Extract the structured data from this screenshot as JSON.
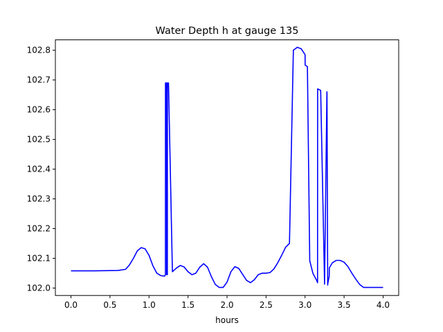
{
  "chart_data": {
    "type": "line",
    "title": "Water Depth h at gauge 135",
    "xlabel": "hours",
    "ylabel": "",
    "xlim": [
      -0.2,
      4.2
    ],
    "ylim": [
      101.975,
      102.835
    ],
    "x_ticks": [
      0.0,
      0.5,
      1.0,
      1.5,
      2.0,
      2.5,
      3.0,
      3.5,
      4.0
    ],
    "x_tick_labels": [
      "0.0",
      "0.5",
      "1.0",
      "1.5",
      "2.0",
      "2.5",
      "3.0",
      "3.5",
      "4.0"
    ],
    "y_ticks": [
      102.0,
      102.1,
      102.2,
      102.3,
      102.4,
      102.5,
      102.6,
      102.7,
      102.8
    ],
    "y_tick_labels": [
      "102.0",
      "102.1",
      "102.2",
      "102.3",
      "102.4",
      "102.5",
      "102.6",
      "102.7",
      "102.8"
    ],
    "grid": false,
    "legend": "none",
    "series": [
      {
        "color": "#0000ff",
        "x": [
          0.0,
          0.3,
          0.6,
          0.7,
          0.75,
          0.8,
          0.85,
          0.9,
          0.95,
          1.0,
          1.05,
          1.1,
          1.15,
          1.2,
          1.21,
          1.211,
          1.225,
          1.226,
          1.235,
          1.236,
          1.25,
          1.3,
          1.35,
          1.4,
          1.45,
          1.5,
          1.55,
          1.6,
          1.65,
          1.7,
          1.75,
          1.8,
          1.85,
          1.9,
          1.95,
          2.0,
          2.05,
          2.1,
          2.15,
          2.2,
          2.25,
          2.3,
          2.35,
          2.4,
          2.45,
          2.5,
          2.55,
          2.6,
          2.65,
          2.7,
          2.75,
          2.8,
          2.85,
          2.9,
          2.95,
          3.0,
          3.001,
          3.03,
          3.06,
          3.1,
          3.15,
          3.16,
          3.161,
          3.2,
          3.25,
          3.28,
          3.281,
          3.29,
          3.291,
          3.31,
          3.311,
          3.35,
          3.4,
          3.45,
          3.5,
          3.55,
          3.6,
          3.65,
          3.7,
          3.75,
          3.8,
          3.85,
          3.9,
          3.95,
          4.0
        ],
        "y": [
          102.058,
          102.058,
          102.059,
          102.063,
          102.078,
          102.1,
          102.125,
          102.136,
          102.132,
          102.11,
          102.075,
          102.05,
          102.042,
          102.04,
          102.045,
          102.69,
          102.69,
          102.045,
          102.045,
          102.69,
          102.69,
          102.055,
          102.067,
          102.076,
          102.071,
          102.055,
          102.045,
          102.05,
          102.07,
          102.082,
          102.07,
          102.038,
          102.012,
          102.002,
          102.002,
          102.02,
          102.055,
          102.072,
          102.066,
          102.046,
          102.026,
          102.018,
          102.028,
          102.045,
          102.05,
          102.05,
          102.052,
          102.064,
          102.085,
          102.11,
          102.137,
          102.15,
          102.8,
          102.81,
          102.805,
          102.785,
          102.75,
          102.745,
          102.092,
          102.05,
          102.025,
          102.018,
          102.67,
          102.665,
          102.013,
          102.66,
          102.66,
          102.01,
          102.015,
          102.04,
          102.068,
          102.085,
          102.093,
          102.093,
          102.087,
          102.072,
          102.05,
          102.03,
          102.012,
          102.002,
          102.002,
          102.002,
          102.002,
          102.002,
          102.002
        ]
      }
    ]
  }
}
